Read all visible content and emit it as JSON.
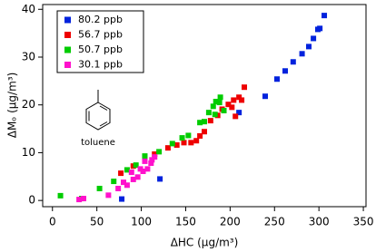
{
  "chart_data": {
    "type": "scatter",
    "x_label": "ΔHC (µg/m³)",
    "y_label": "ΔMₒ (µg/m³)",
    "annotation": "toluene",
    "xlim": [
      -11,
      353
    ],
    "ylim": [
      -1.3,
      41
    ],
    "xticks": [
      0,
      50,
      100,
      150,
      200,
      250,
      300,
      350
    ],
    "yticks": [
      0,
      10,
      20,
      30,
      40
    ],
    "grid": false,
    "legend": "upper left",
    "series": [
      {
        "name": "80.2 ppb",
        "color": "#0022dd",
        "x": [
          78,
          121,
          210,
          239.5,
          252.8,
          262,
          271,
          281,
          288.6,
          293.8,
          298.8,
          301,
          306
        ],
        "values": [
          0.3,
          4.5,
          18.4,
          21.8,
          25.4,
          27.1,
          29,
          30.7,
          32.2,
          33.9,
          35.8,
          36,
          38.7
        ]
      },
      {
        "name": "56.7 ppb",
        "color": "#ee0000",
        "x": [
          77,
          91,
          115,
          130,
          140,
          148,
          156,
          162,
          166,
          171,
          178,
          186,
          191,
          198,
          204,
          210,
          213,
          216,
          202,
          206
        ],
        "values": [
          5.7,
          7.2,
          9.7,
          11,
          11.6,
          12.1,
          12.1,
          12.5,
          13.5,
          14.4,
          16.7,
          17.8,
          19.1,
          20.1,
          21,
          21.6,
          21,
          23.7,
          19.5,
          17.6
        ]
      },
      {
        "name": "50.7 ppb",
        "color": "#00cc00",
        "x": [
          9,
          33,
          53,
          69,
          84,
          94,
          104,
          120,
          135,
          146,
          153,
          166,
          171,
          176,
          181,
          184,
          189,
          188,
          183,
          193
        ],
        "values": [
          1,
          0.4,
          2.5,
          4,
          6.4,
          7.4,
          9.3,
          10.2,
          11.9,
          13.1,
          13.6,
          16.3,
          16.5,
          18.4,
          19.7,
          20.7,
          21.6,
          20.5,
          18,
          18.8
        ]
      },
      {
        "name": "30.1 ppb",
        "color": "#ff11cc",
        "x": [
          30,
          35,
          63,
          74,
          84,
          91,
          96,
          102,
          107,
          111,
          112,
          115,
          104,
          99,
          89,
          80
        ],
        "values": [
          0.2,
          0.4,
          1.1,
          2.5,
          3.2,
          4.4,
          4.9,
          6.1,
          6.6,
          7.8,
          8.5,
          9.1,
          8.2,
          6.6,
          5.9,
          3.8
        ]
      }
    ]
  }
}
